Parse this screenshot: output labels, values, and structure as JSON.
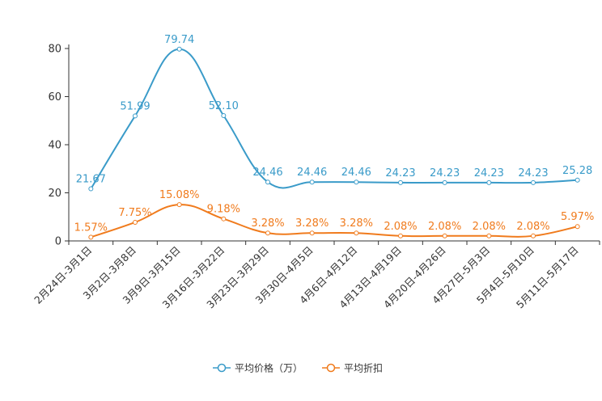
{
  "chart_data": {
    "type": "line",
    "categories": [
      "2月24日-3月1日",
      "3月2日-3月8日",
      "3月9日-3月15日",
      "3月16日-3月22日",
      "3月23日-3月29日",
      "3月30日-4月5日",
      "4月6日-4月12日",
      "4月13日-4月19日",
      "4月20日-4月26日",
      "4月27日-5月3日",
      "5月4日-5月10日",
      "5月11日-5月17日"
    ],
    "series": [
      {
        "name": "平均价格（万）",
        "color": "#3a9bc9",
        "values": [
          21.67,
          51.99,
          79.74,
          52.1,
          24.46,
          24.46,
          24.46,
          24.23,
          24.23,
          24.23,
          24.23,
          25.28
        ],
        "labels": [
          "21.67",
          "51.99",
          "79.74",
          "52.10",
          "24.46",
          "24.46",
          "24.46",
          "24.23",
          "24.23",
          "24.23",
          "24.23",
          "25.28"
        ]
      },
      {
        "name": "平均折扣",
        "color": "#f07b1d",
        "values": [
          1.57,
          7.75,
          15.08,
          9.18,
          3.28,
          3.28,
          3.28,
          2.08,
          2.08,
          2.08,
          2.08,
          5.97
        ],
        "labels": [
          "1.57%",
          "7.75%",
          "15.08%",
          "9.18%",
          "3.28%",
          "3.28%",
          "3.28%",
          "2.08%",
          "2.08%",
          "2.08%",
          "2.08%",
          "5.97%"
        ]
      }
    ],
    "yticks": [
      "0",
      "20",
      "40",
      "60",
      "80"
    ],
    "ylim": [
      0,
      80
    ],
    "title": "",
    "xlabel": "",
    "ylabel": "",
    "legend_position": "bottom-center"
  }
}
